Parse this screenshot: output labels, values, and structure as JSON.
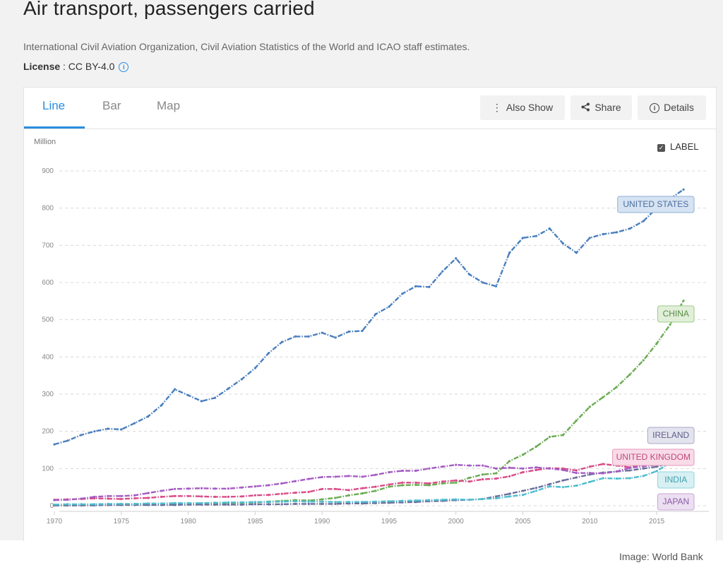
{
  "header": {
    "title": "Air transport, passengers carried",
    "source": "International Civil Aviation Organization, Civil Aviation Statistics of the World and ICAO staff estimates.",
    "license_label": "License",
    "license_value": " : CC BY-4.0"
  },
  "tabs": [
    {
      "label": "Line"
    },
    {
      "label": "Bar"
    },
    {
      "label": "Map"
    }
  ],
  "toolbar": {
    "also_show": "Also Show",
    "share": "Share",
    "details": "Details"
  },
  "label_toggle": "LABEL",
  "credit": "Image: World Bank",
  "colors": {
    "accent": "#2a8de0",
    "us": "#4a7fbf",
    "china": "#6aab52",
    "ireland": "#6b6d9c",
    "uk": "#d94b87",
    "india": "#4fbccd",
    "japan": "#a45cc2"
  },
  "chart_data": {
    "type": "line",
    "title": "Air transport, passengers carried",
    "ylabel": "Million",
    "xlabel": "",
    "ylim": [
      0,
      900
    ],
    "yticks": [
      0,
      100,
      200,
      300,
      400,
      500,
      600,
      700,
      800,
      900
    ],
    "xticks": [
      1970,
      1975,
      1980,
      1985,
      1990,
      1995,
      2000,
      2005,
      2010,
      2015
    ],
    "x": [
      1970,
      1971,
      1972,
      1973,
      1974,
      1975,
      1976,
      1977,
      1978,
      1979,
      1980,
      1981,
      1982,
      1983,
      1984,
      1985,
      1986,
      1987,
      1988,
      1989,
      1990,
      1991,
      1992,
      1993,
      1994,
      1995,
      1996,
      1997,
      1998,
      1999,
      2000,
      2001,
      2002,
      2003,
      2004,
      2005,
      2006,
      2007,
      2008,
      2009,
      2010,
      2011,
      2012,
      2013,
      2014,
      2015,
      2016,
      2017
    ],
    "series": [
      {
        "name": "UNITED STATES",
        "color": "#4a7fbf",
        "values": [
          165,
          175,
          190,
          200,
          207,
          205,
          222,
          240,
          270,
          313,
          297,
          281,
          290,
          315,
          340,
          370,
          410,
          440,
          455,
          455,
          465,
          452,
          468,
          470,
          515,
          535,
          570,
          590,
          588,
          630,
          665,
          622,
          600,
          590,
          680,
          720,
          725,
          745,
          705,
          680,
          720,
          730,
          735,
          745,
          765,
          800,
          825,
          850
        ]
      },
      {
        "name": "CHINA",
        "color": "#6aab52",
        "values": [
          1,
          1,
          1,
          2,
          2,
          2,
          3,
          3,
          3,
          4,
          4,
          5,
          6,
          7,
          8,
          9,
          11,
          13,
          15,
          14,
          17,
          21,
          28,
          33,
          40,
          51,
          55,
          56,
          55,
          60,
          62,
          75,
          84,
          87,
          120,
          137,
          159,
          185,
          190,
          229,
          266,
          292,
          319,
          353,
          391,
          436,
          487,
          551
        ]
      },
      {
        "name": "IRELAND",
        "color": "#6b6d9c",
        "values": [
          1,
          1,
          1,
          1,
          2,
          2,
          2,
          2,
          2,
          2,
          3,
          3,
          3,
          3,
          3,
          4,
          4,
          4,
          5,
          5,
          5,
          5,
          6,
          6,
          7,
          8,
          9,
          10,
          12,
          13,
          15,
          16,
          18,
          25,
          32,
          40,
          48,
          58,
          68,
          76,
          84,
          89,
          92,
          95,
          100,
          105,
          115,
          123
        ]
      },
      {
        "name": "UNITED KINGDOM",
        "color": "#d94b87",
        "values": [
          16,
          17,
          18,
          20,
          19,
          18,
          20,
          21,
          24,
          26,
          26,
          25,
          24,
          24,
          25,
          28,
          29,
          32,
          35,
          37,
          45,
          45,
          42,
          47,
          51,
          57,
          62,
          62,
          60,
          65,
          68,
          65,
          71,
          73,
          79,
          90,
          96,
          101,
          100,
          95,
          105,
          112,
          108,
          103,
          111,
          118,
          127,
          135
        ]
      },
      {
        "name": "INDIA",
        "color": "#4fbccd",
        "values": [
          3,
          4,
          4,
          4,
          5,
          5,
          5,
          6,
          6,
          7,
          7,
          7,
          8,
          9,
          9,
          10,
          10,
          11,
          12,
          11,
          11,
          10,
          10,
          10,
          11,
          12,
          13,
          14,
          15,
          16,
          17,
          16,
          18,
          20,
          25,
          29,
          40,
          52,
          50,
          54,
          64,
          74,
          73,
          74,
          80,
          93,
          115,
          140
        ]
      },
      {
        "name": "JAPAN",
        "color": "#a45cc2",
        "values": [
          15,
          16,
          19,
          24,
          26,
          26,
          28,
          34,
          40,
          45,
          46,
          47,
          46,
          46,
          49,
          52,
          55,
          60,
          66,
          72,
          77,
          78,
          80,
          78,
          83,
          90,
          94,
          94,
          100,
          105,
          110,
          108,
          108,
          100,
          102,
          100,
          103,
          100,
          96,
          88,
          88,
          87,
          92,
          102,
          106,
          110,
          112,
          118
        ]
      }
    ],
    "labels": [
      {
        "text": "UNITED STATES",
        "series": "UNITED STATES"
      },
      {
        "text": "CHINA",
        "series": "CHINA"
      },
      {
        "text": "IRELAND",
        "series": "IRELAND"
      },
      {
        "text": "UNITED KINGDOM",
        "series": "UNITED KINGDOM"
      },
      {
        "text": "INDIA",
        "series": "INDIA"
      },
      {
        "text": "JAPAN",
        "series": "JAPAN"
      }
    ]
  }
}
